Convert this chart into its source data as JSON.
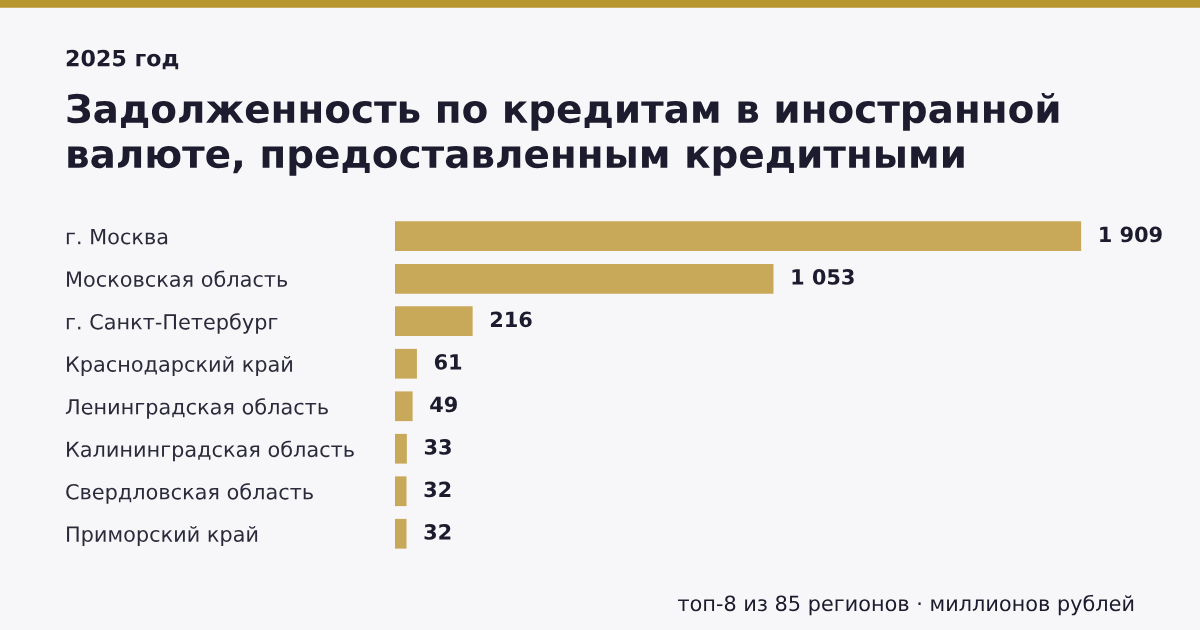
{
  "chart_data": {
    "type": "bar",
    "orientation": "horizontal",
    "title": "Задолженность по кредитам в иностранной\nвалюте, предоставленным кредитными",
    "subtitle": "2025 год",
    "categories": [
      "г. Москва",
      "Московская область",
      "г. Санкт-Петербург",
      "Краснодарский край",
      "Ленинградская область",
      "Калининградская область",
      "Свердловская область",
      "Приморский край"
    ],
    "values": [
      1909,
      1053,
      216,
      61,
      49,
      33,
      32,
      32
    ],
    "value_labels": [
      "1 909",
      "1 053",
      "216",
      "61",
      "49",
      "33",
      "32",
      "32"
    ],
    "color": "#c8a95a",
    "grid": false,
    "legend": false,
    "annotations": [
      "топ-8 из 85 регионов · миллионов рублей"
    ]
  }
}
